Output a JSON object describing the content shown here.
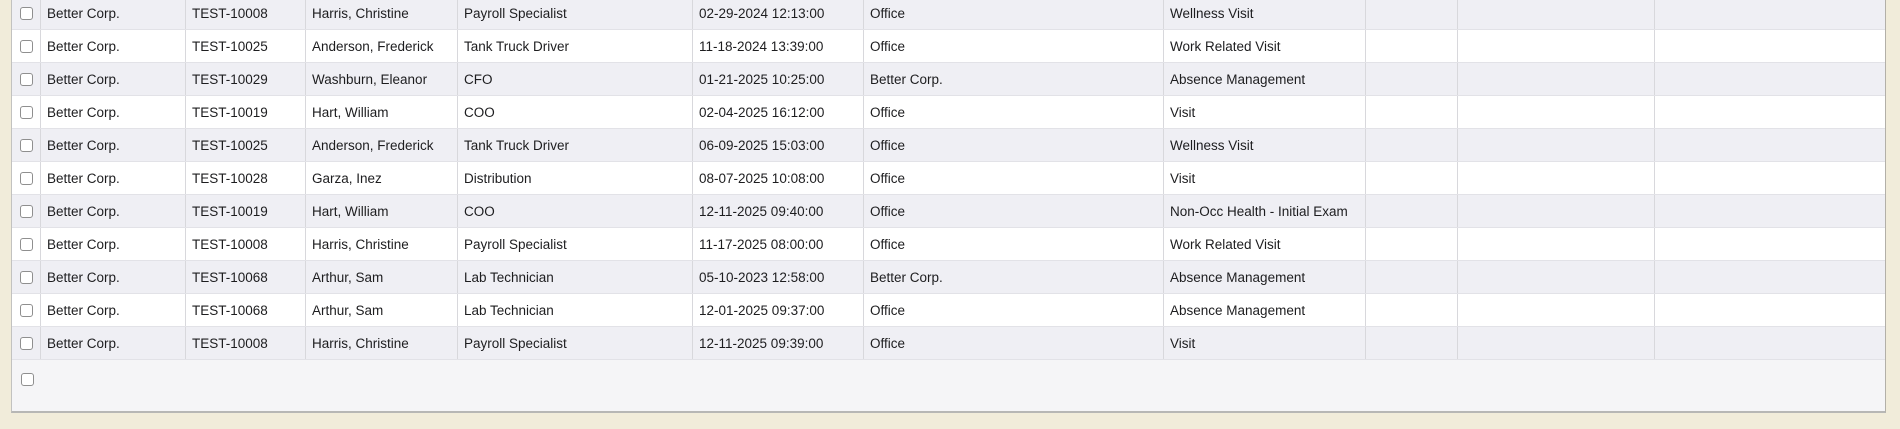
{
  "page": {
    "background_color": "#f1ecda",
    "row_stripe_color": "#efeff4",
    "row_plain_color": "#ffffff"
  },
  "grid": {
    "rows": [
      {
        "checkbox_checked": false,
        "cells": [
          "Better Corp.",
          "TEST-10008",
          "Harris, Christine",
          "Payroll Specialist",
          "02-29-2024 12:13:00",
          "Office",
          "Wellness Visit",
          "",
          "",
          ""
        ]
      },
      {
        "checkbox_checked": false,
        "cells": [
          "Better Corp.",
          "TEST-10025",
          "Anderson, Frederick",
          "Tank Truck Driver",
          "11-18-2024 13:39:00",
          "Office",
          "Work Related Visit",
          "",
          "",
          ""
        ]
      },
      {
        "checkbox_checked": false,
        "cells": [
          "Better Corp.",
          "TEST-10029",
          "Washburn, Eleanor",
          "CFO",
          "01-21-2025 10:25:00",
          "Better Corp.",
          "Absence Management",
          "",
          "",
          ""
        ]
      },
      {
        "checkbox_checked": false,
        "cells": [
          "Better Corp.",
          "TEST-10019",
          "Hart, William",
          "COO",
          "02-04-2025 16:12:00",
          "Office",
          "Visit",
          "",
          "",
          ""
        ]
      },
      {
        "checkbox_checked": false,
        "cells": [
          "Better Corp.",
          "TEST-10025",
          "Anderson, Frederick",
          "Tank Truck Driver",
          "06-09-2025 15:03:00",
          "Office",
          "Wellness Visit",
          "",
          "",
          ""
        ]
      },
      {
        "checkbox_checked": false,
        "cells": [
          "Better Corp.",
          "TEST-10028",
          "Garza, Inez",
          "Distribution",
          "08-07-2025 10:08:00",
          "Office",
          "Visit",
          "",
          "",
          ""
        ]
      },
      {
        "checkbox_checked": false,
        "cells": [
          "Better Corp.",
          "TEST-10019",
          "Hart, William",
          "COO",
          "12-11-2025 09:40:00",
          "Office",
          "Non-Occ Health - Initial Exam",
          "",
          "",
          ""
        ]
      },
      {
        "checkbox_checked": false,
        "cells": [
          "Better Corp.",
          "TEST-10008",
          "Harris, Christine",
          "Payroll Specialist",
          "11-17-2025 08:00:00",
          "Office",
          "Work Related Visit",
          "",
          "",
          ""
        ]
      },
      {
        "checkbox_checked": false,
        "cells": [
          "Better Corp.",
          "TEST-10068",
          "Arthur, Sam",
          "Lab Technician",
          "05-10-2023 12:58:00",
          "Better Corp.",
          "Absence Management",
          "",
          "",
          ""
        ]
      },
      {
        "checkbox_checked": false,
        "cells": [
          "Better Corp.",
          "TEST-10068",
          "Arthur, Sam",
          "Lab Technician",
          "12-01-2025 09:37:00",
          "Office",
          "Absence Management",
          "",
          "",
          ""
        ]
      },
      {
        "checkbox_checked": false,
        "cells": [
          "Better Corp.",
          "TEST-10008",
          "Harris, Christine",
          "Payroll Specialist",
          "12-11-2025 09:39:00",
          "Office",
          "Visit",
          "",
          "",
          ""
        ]
      }
    ],
    "new_row": {
      "checkbox_checked": false
    }
  }
}
